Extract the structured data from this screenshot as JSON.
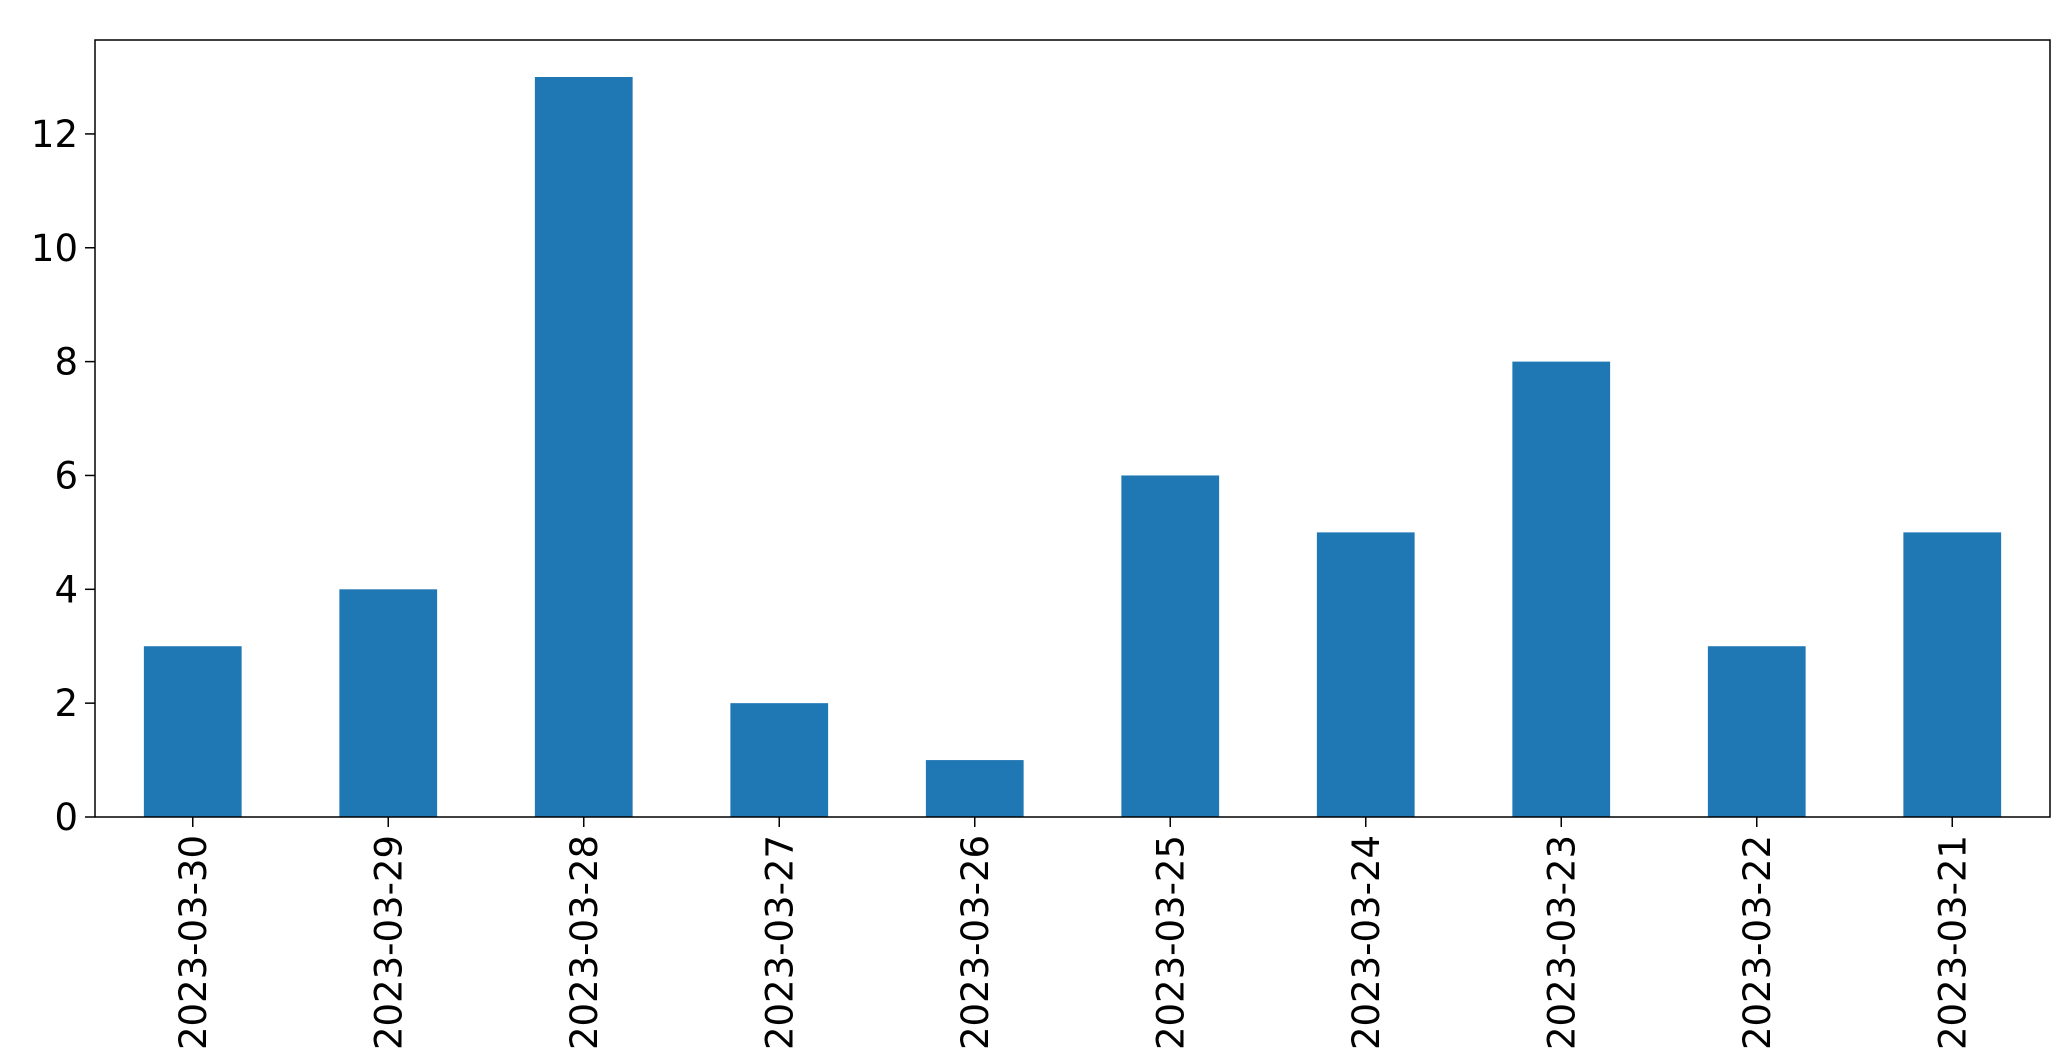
{
  "chart_data": {
    "type": "bar",
    "categories": [
      "2023-03-30",
      "2023-03-29",
      "2023-03-28",
      "2023-03-27",
      "2023-03-26",
      "2023-03-25",
      "2023-03-24",
      "2023-03-23",
      "2023-03-22",
      "2023-03-21"
    ],
    "values": [
      3,
      4,
      13,
      2,
      1,
      6,
      5,
      8,
      3,
      5
    ],
    "title": "",
    "xlabel": "",
    "ylabel": "",
    "ylim": [
      0,
      13.65
    ],
    "yticks": [
      0,
      2,
      4,
      6,
      8,
      10,
      12
    ],
    "grid": false,
    "legend": "none",
    "colors": {
      "bar": "#1f77b4",
      "axis": "#000000",
      "background": "#ffffff"
    }
  }
}
